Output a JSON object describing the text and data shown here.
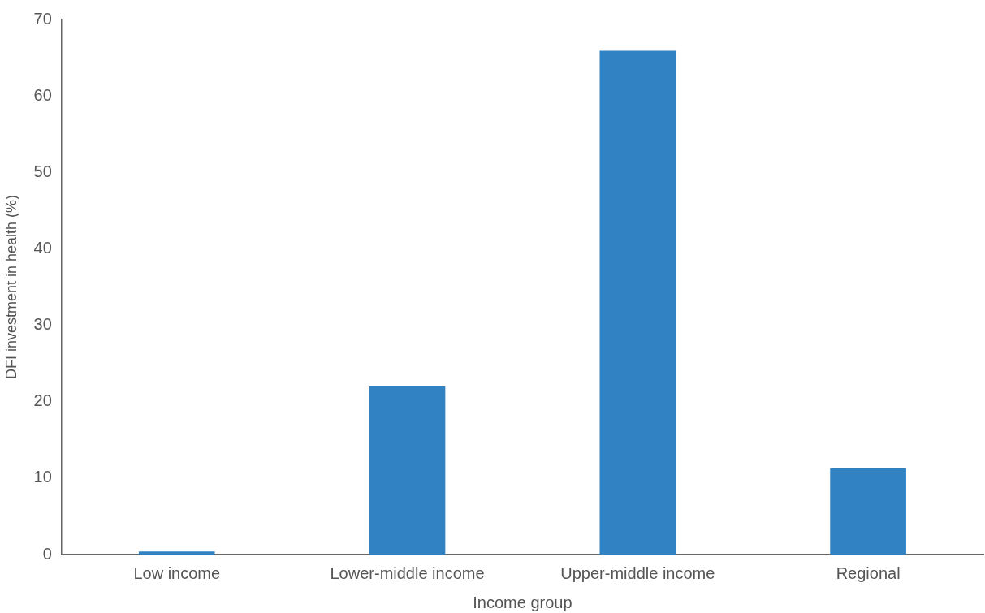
{
  "chart_data": {
    "type": "bar",
    "xlabel": "Income group",
    "ylabel": "DFI investment in health (%)",
    "categories": [
      "Low income",
      "Lower-middle income",
      "Upper-middle income",
      "Regional"
    ],
    "values": [
      0.4,
      22,
      65.9,
      11.3
    ],
    "color": "#3182c2",
    "ylim": [
      0,
      70
    ],
    "yticks": [
      0,
      10,
      20,
      30,
      40,
      50,
      60,
      70
    ],
    "grid": false,
    "legend": false
  }
}
